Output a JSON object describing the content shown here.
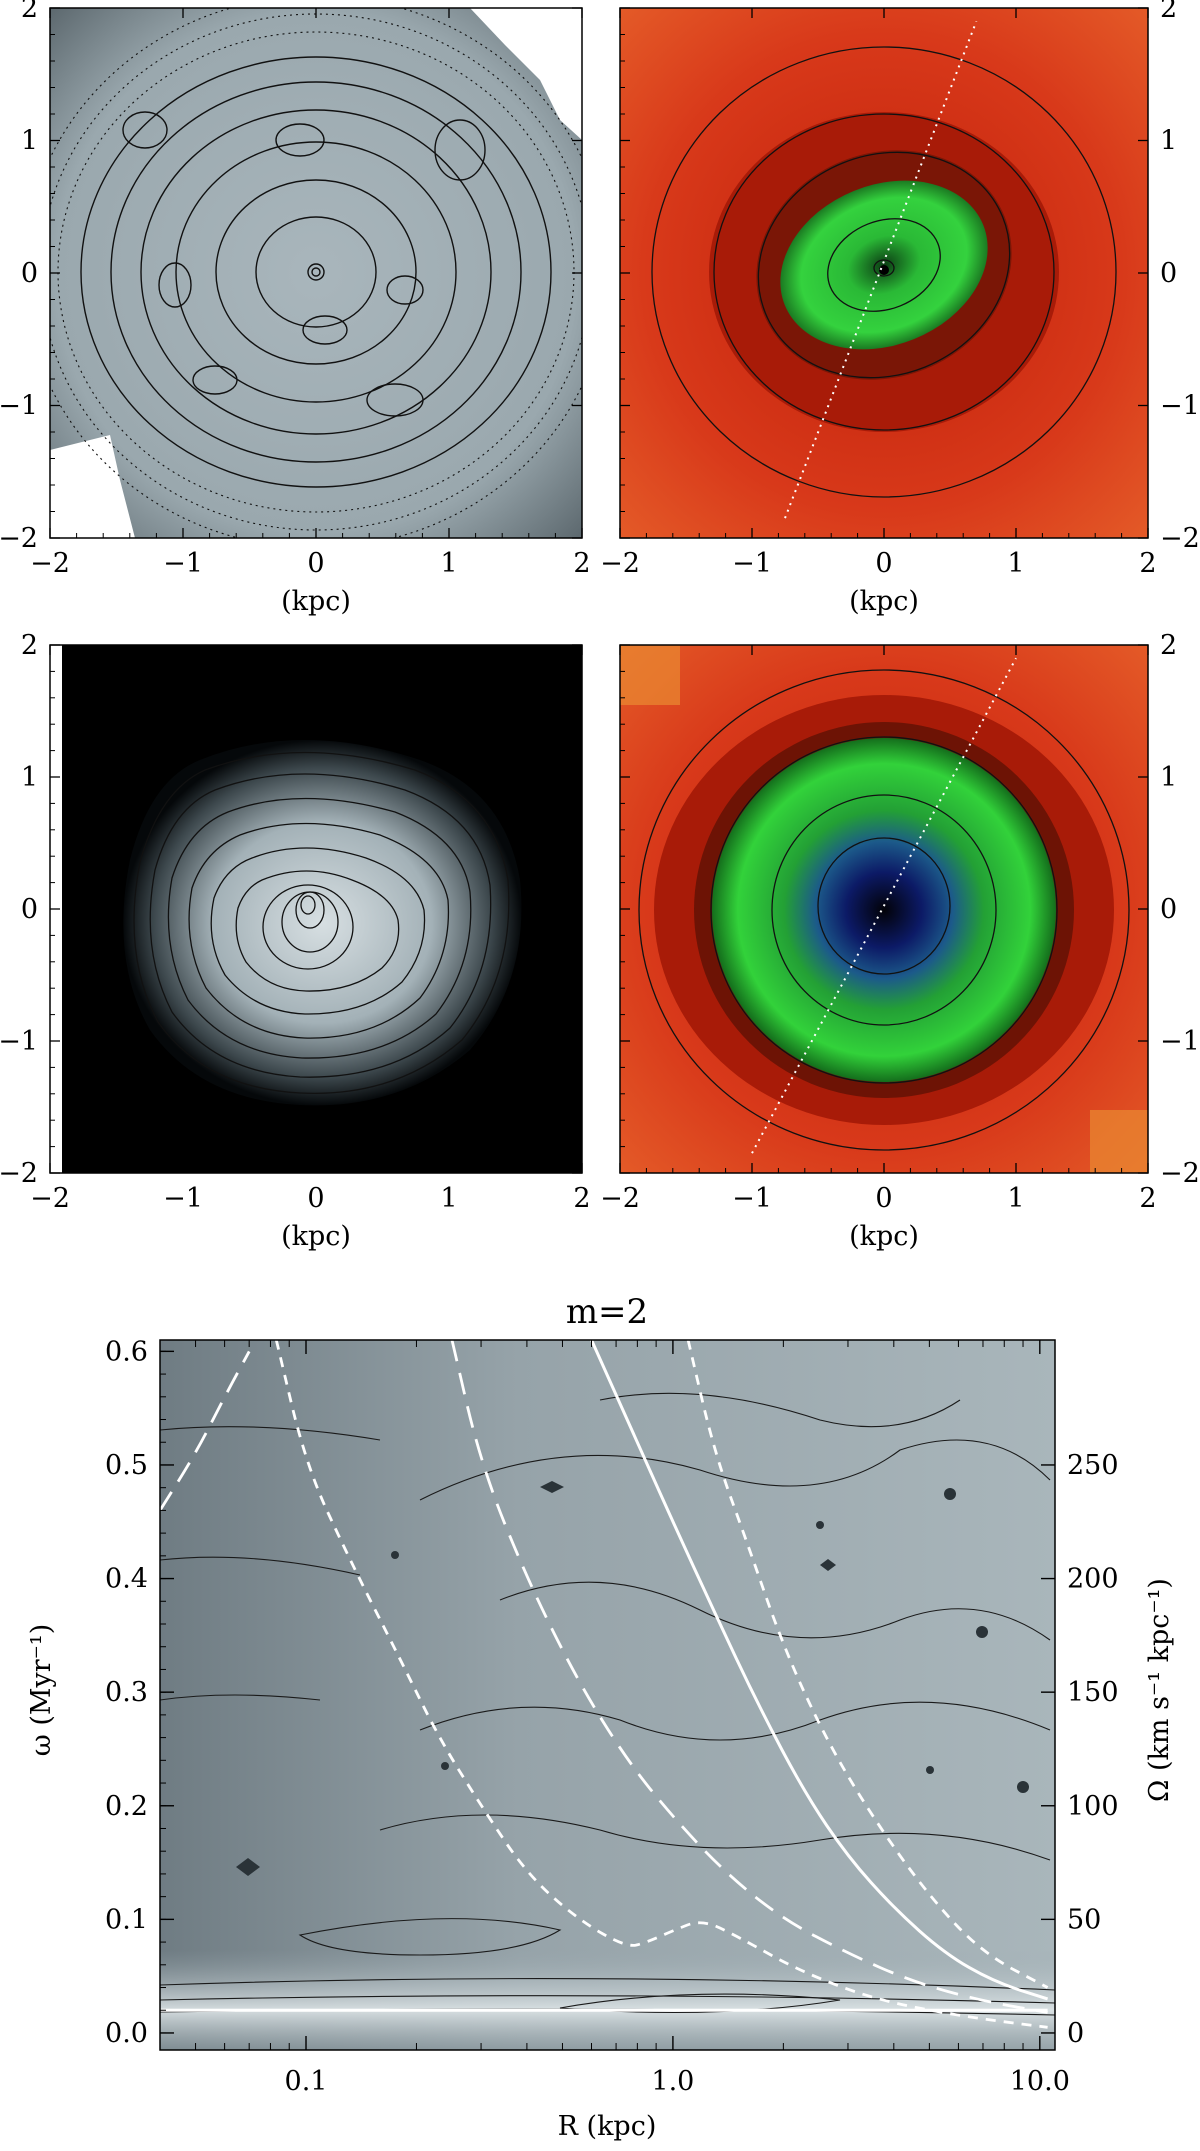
{
  "chart_data": [
    {
      "type": "heatmap",
      "panel": "top-left",
      "colormap": "grayscale",
      "xlabel": "(kpc)",
      "xlim": [
        -2,
        2
      ],
      "ylim": [
        -2,
        2
      ],
      "xticks": [
        "−2",
        "−1",
        "0",
        "1",
        "2"
      ],
      "yticks": [
        "−2",
        "−1",
        "0",
        "1",
        "2"
      ],
      "contours": "solid and dotted"
    },
    {
      "type": "heatmap",
      "panel": "top-right",
      "colormap": "red-green-blue",
      "xlabel": "(kpc)",
      "xlim": [
        -2,
        2
      ],
      "ylim": [
        -2,
        2
      ],
      "xticks": [
        "−2",
        "−1",
        "0",
        "1",
        "2"
      ],
      "yticks": [
        "−2",
        "−1",
        "0",
        "1",
        "2"
      ],
      "axis_side": "right",
      "dotted_line": {
        "from": [
          -0.75,
          -1.85
        ],
        "to": [
          0.7,
          1.9
        ]
      }
    },
    {
      "type": "heatmap",
      "panel": "middle-left",
      "colormap": "grayscale",
      "xlabel": "(kpc)",
      "xlim": [
        -2,
        2
      ],
      "ylim": [
        -2,
        2
      ],
      "xticks": [
        "−2",
        "−1",
        "0",
        "1",
        "2"
      ],
      "yticks": [
        "−2",
        "−1",
        "0",
        "1",
        "2"
      ]
    },
    {
      "type": "heatmap",
      "panel": "middle-right",
      "colormap": "red-green-blue",
      "xlabel": "(kpc)",
      "xlim": [
        -2,
        2
      ],
      "ylim": [
        -2,
        2
      ],
      "xticks": [
        "−2",
        "−1",
        "0",
        "1",
        "2"
      ],
      "yticks": [
        "−2",
        "−1",
        "0",
        "1",
        "2"
      ],
      "axis_side": "right",
      "dotted_line": {
        "from": [
          -1.0,
          -1.85
        ],
        "to": [
          1.0,
          1.9
        ]
      }
    },
    {
      "type": "heatmap",
      "panel": "bottom",
      "title": "m=2",
      "xlabel": "R (kpc)",
      "ylabel": "ω (Myr⁻¹)",
      "ylabel_right": "Ω (km s⁻¹ kpc⁻¹)",
      "xscale": "log",
      "xlim": [
        0.04,
        11
      ],
      "ylim": [
        -0.015,
        0.61
      ],
      "xticks": [
        {
          "v": 0.1,
          "label": "0.1"
        },
        {
          "v": 1.0,
          "label": "1.0"
        },
        {
          "v": 10.0,
          "label": "10.0"
        }
      ],
      "yticks": [
        {
          "v": 0.0,
          "label": "0.0"
        },
        {
          "v": 0.1,
          "label": "0.1"
        },
        {
          "v": 0.2,
          "label": "0.2"
        },
        {
          "v": 0.3,
          "label": "0.3"
        },
        {
          "v": 0.4,
          "label": "0.4"
        },
        {
          "v": 0.5,
          "label": "0.5"
        },
        {
          "v": 0.6,
          "label": "0.6"
        }
      ],
      "yticks_right": [
        {
          "v": 0.0,
          "label": "0"
        },
        {
          "v": 0.1,
          "label": "50"
        },
        {
          "v": 0.2,
          "label": "100"
        },
        {
          "v": 0.3,
          "label": "150"
        },
        {
          "v": 0.4,
          "label": "200"
        },
        {
          "v": 0.5,
          "label": "250"
        }
      ],
      "series": [
        {
          "style": "solid",
          "x": [
            0.6,
            0.8,
            1.0,
            1.3,
            1.7,
            2.3,
            3.0,
            4.0,
            5.5,
            7.5,
            10.5
          ],
          "y": [
            0.61,
            0.52,
            0.45,
            0.37,
            0.29,
            0.21,
            0.155,
            0.11,
            0.07,
            0.045,
            0.03
          ]
        },
        {
          "style": "long-dash",
          "x": [
            0.25,
            0.3,
            0.4,
            0.55,
            0.75,
            1.0,
            1.4,
            2.0,
            3.0,
            4.5,
            7.0,
            10.5
          ],
          "y": [
            0.61,
            0.5,
            0.4,
            0.31,
            0.24,
            0.19,
            0.14,
            0.1,
            0.07,
            0.045,
            0.028,
            0.018
          ]
        },
        {
          "style": "short-dash",
          "x": [
            0.083,
            0.1,
            0.13,
            0.18,
            0.23,
            0.3,
            0.4,
            0.55,
            0.75,
            0.85,
            1.0,
            1.2,
            1.5,
            2.2,
            3.5,
            6.0,
            10.5
          ],
          "y": [
            0.61,
            0.5,
            0.42,
            0.33,
            0.26,
            0.2,
            0.14,
            0.1,
            0.075,
            0.08,
            0.09,
            0.1,
            0.085,
            0.055,
            0.03,
            0.015,
            0.005
          ]
        },
        {
          "style": "short-dash",
          "x": [
            1.1,
            1.3,
            1.6,
            2.0,
            2.6,
            3.5,
            5.0,
            7.0,
            10.5
          ],
          "y": [
            0.61,
            0.51,
            0.43,
            0.34,
            0.26,
            0.19,
            0.12,
            0.07,
            0.04
          ]
        },
        {
          "style": "long-dash",
          "x": [
            0.04,
            0.05,
            0.06,
            0.07
          ],
          "y": [
            0.46,
            0.51,
            0.56,
            0.6
          ]
        },
        {
          "style": "solid",
          "x": [
            0.04,
            10.5
          ],
          "y": [
            0.02,
            0.02
          ]
        }
      ]
    }
  ]
}
